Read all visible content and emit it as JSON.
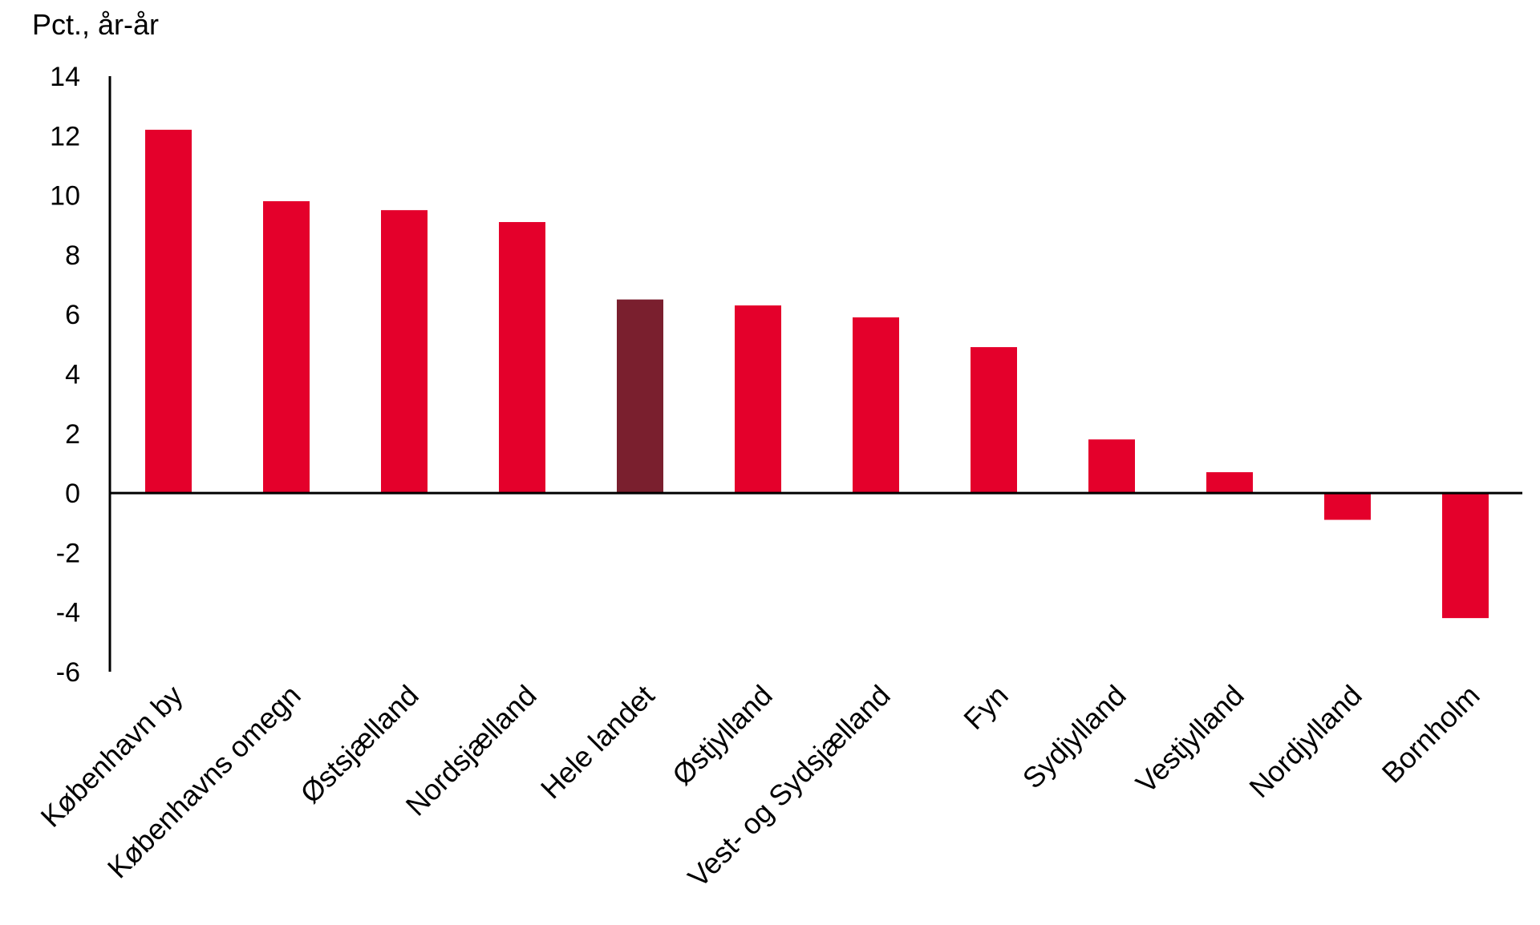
{
  "chart_data": {
    "type": "bar",
    "ylabel": "Pct., år-år",
    "xlabel": "",
    "ylim": [
      -6,
      14
    ],
    "yticks": [
      14,
      12,
      10,
      8,
      6,
      4,
      2,
      0,
      -2,
      -4,
      -6
    ],
    "categories": [
      "København by",
      "Københavns omegn",
      "Østsjælland",
      "Nordsjælland",
      "Hele landet",
      "Østjylland",
      "Vest- og Sydsjælland",
      "Fyn",
      "Sydjylland",
      "Vestjylland",
      "Nordjylland",
      "Bornholm"
    ],
    "values": [
      12.2,
      9.8,
      9.5,
      9.1,
      6.5,
      6.3,
      5.9,
      4.9,
      1.8,
      0.7,
      -0.9,
      -4.2
    ],
    "highlight_category": "Hele landet",
    "grid": false,
    "legend": "none",
    "colors": {
      "bar": "#e4002b",
      "highlight": "#7a1f2e",
      "axis": "#000000"
    }
  }
}
